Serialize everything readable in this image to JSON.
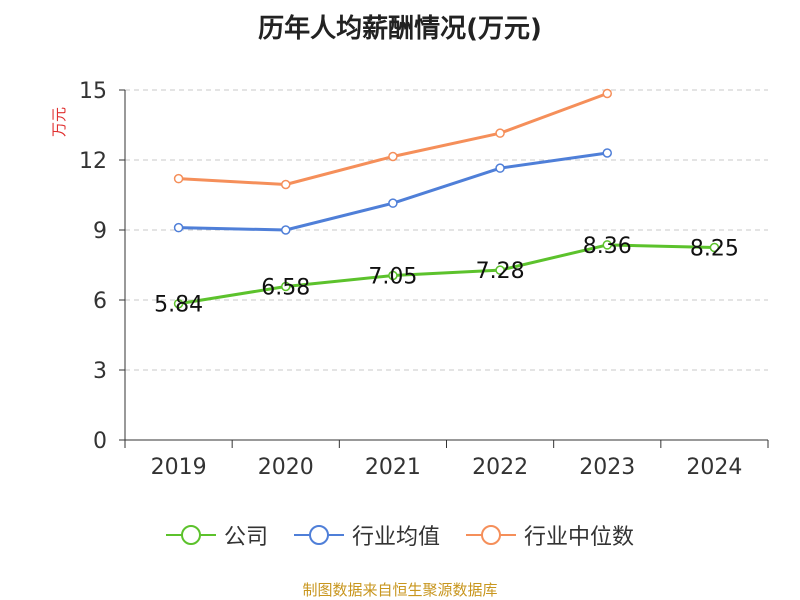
{
  "colors": {
    "company": "#5cc22c",
    "industry_avg": "#4f7fd8",
    "industry_median": "#f58f5a",
    "ylabel": "#e03030",
    "source": "#c8961e"
  },
  "chart_data": {
    "type": "line",
    "title": "历年人均薪酬情况(万元)",
    "ylabel": "万元",
    "xlabel": "",
    "categories": [
      "2019",
      "2020",
      "2021",
      "2022",
      "2023",
      "2024"
    ],
    "ylim": [
      0,
      15
    ],
    "yticks": [
      0,
      3,
      6,
      9,
      12,
      15
    ],
    "grid": true,
    "legend_position": "bottom",
    "series": [
      {
        "name": "公司",
        "color": "#5cc22c",
        "values": [
          5.84,
          6.58,
          7.05,
          7.28,
          8.36,
          8.25
        ],
        "data_labels": [
          "5.84",
          "6.58",
          "7.05",
          "7.28",
          "8.36",
          "8.25"
        ]
      },
      {
        "name": "行业均值",
        "color": "#4f7fd8",
        "values": [
          9.1,
          9.0,
          10.15,
          11.65,
          12.3,
          null
        ]
      },
      {
        "name": "行业中位数",
        "color": "#f58f5a",
        "values": [
          11.2,
          10.95,
          12.15,
          13.15,
          14.85,
          null
        ]
      }
    ]
  },
  "source": "制图数据来自恒生聚源数据库"
}
